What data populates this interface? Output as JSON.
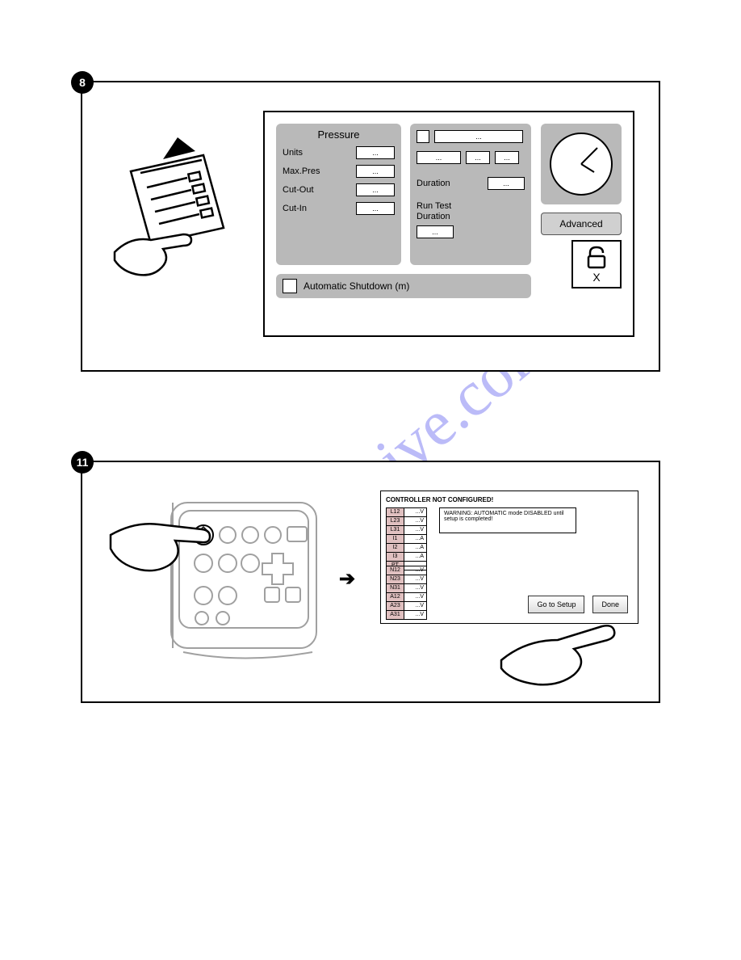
{
  "badges": {
    "p8": "8",
    "p11": "11"
  },
  "watermark": "manualshive.com",
  "panel8": {
    "pressure_title": "Pressure",
    "rows": [
      {
        "label": "Units",
        "value": "..."
      },
      {
        "label": "Max.Pres",
        "value": "..."
      },
      {
        "label": "Cut-Out",
        "value": "..."
      },
      {
        "label": "Cut-In",
        "value": "..."
      }
    ],
    "mid_top_value": "...",
    "mid_row2": [
      "...",
      "...",
      "..."
    ],
    "duration_label": "Duration",
    "duration_value": "...",
    "runtest_label": "Run Test\nDuration",
    "runtest_value": "...",
    "advanced_label": "Advanced",
    "lock_x": "X",
    "auto_label": "Automatic Shutdown (m)"
  },
  "panel11": {
    "title": "CONTROLLER NOT CONFIGURED!",
    "warning": "WARNING: AUTOMATIC mode DISABLED until setup is completed!",
    "table1": [
      [
        "L12",
        "...V"
      ],
      [
        "L23",
        "...V"
      ],
      [
        "L31",
        "...V"
      ],
      [
        "I1",
        "...A"
      ],
      [
        "I2",
        "...A"
      ],
      [
        "I3",
        "...A"
      ],
      [
        "PT",
        "..."
      ]
    ],
    "table2": [
      [
        "N12",
        "...V"
      ],
      [
        "N23",
        "...V"
      ],
      [
        "N31",
        "...V"
      ],
      [
        "A12",
        "...V"
      ],
      [
        "A23",
        "...V"
      ],
      [
        "A31",
        "...V"
      ]
    ],
    "btn_setup": "Go to Setup",
    "btn_done": "Done",
    "arrow": "➔"
  }
}
